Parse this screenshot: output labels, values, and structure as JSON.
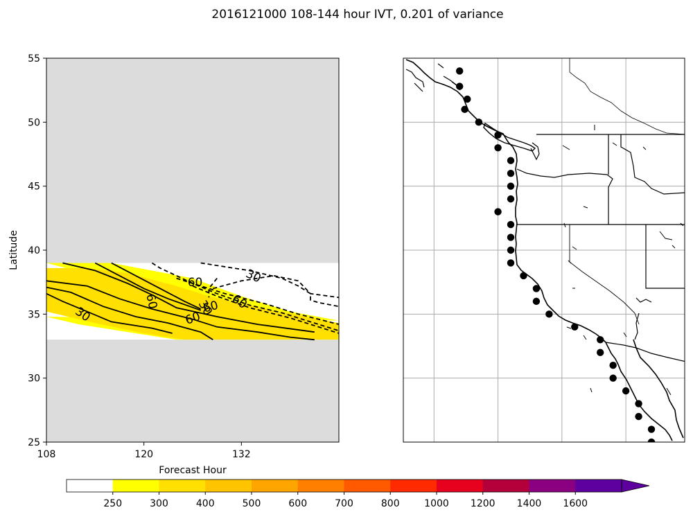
{
  "figure_title": "2016121000 108-144 hour IVT, 0.201 of variance",
  "chart_data": [
    {
      "type": "contour",
      "panel": "left",
      "xlabel": "Forecast Hour",
      "ylabel": "Latitude",
      "xlim": [
        108,
        144
      ],
      "ylim": [
        25,
        55
      ],
      "xticks": [
        "108",
        "120",
        "132"
      ],
      "yticks": [
        "25",
        "30",
        "35",
        "40",
        "45",
        "50",
        "55"
      ],
      "masked_regions": [
        {
          "lat_min": 25,
          "lat_max": 33
        },
        {
          "lat_min": 39,
          "lat_max": 55
        }
      ],
      "fill_band": {
        "value_range": "250-300",
        "color": "#ffff00",
        "upper": [
          [
            108,
            39.0
          ],
          [
            116,
            39.0
          ],
          [
            126,
            37.8
          ],
          [
            132,
            36.4
          ],
          [
            138,
            35.2
          ],
          [
            144,
            34.5
          ]
        ],
        "lower": [
          [
            108,
            34.8
          ],
          [
            112,
            34.2
          ],
          [
            117,
            33.7
          ],
          [
            124,
            33.0
          ],
          [
            144,
            33.0
          ]
        ]
      },
      "fill_core": {
        "value_range": "300-400",
        "color": "#ffe000",
        "upper": [
          [
            108,
            38.6
          ],
          [
            113,
            38.6
          ],
          [
            118,
            38.2
          ],
          [
            124,
            37.2
          ],
          [
            128,
            36.4
          ],
          [
            136,
            35.3
          ],
          [
            144,
            34.3
          ]
        ],
        "lower": [
          [
            144,
            33.0
          ],
          [
            125,
            33.0
          ],
          [
            120,
            33.5
          ],
          [
            114,
            34.3
          ],
          [
            108,
            35.2
          ]
        ]
      },
      "solid_contours": [
        [
          [
            108,
            37.6
          ],
          [
            113,
            37.2
          ],
          [
            117,
            36.2
          ],
          [
            121,
            35.4
          ],
          [
            126,
            34.6
          ],
          [
            129,
            34.0
          ],
          [
            134,
            33.6
          ],
          [
            138,
            33.2
          ],
          [
            141,
            33.0
          ]
        ],
        [
          [
            108,
            37.1
          ],
          [
            111,
            36.7
          ],
          [
            115,
            35.6
          ],
          [
            119,
            34.8
          ],
          [
            123,
            34.3
          ],
          [
            127,
            33.6
          ],
          [
            128.5,
            33.0
          ]
        ],
        [
          [
            108,
            36.6
          ],
          [
            110,
            36.0
          ],
          [
            113,
            35.2
          ],
          [
            116,
            34.4
          ],
          [
            121,
            33.9
          ],
          [
            123.5,
            33.5
          ]
        ],
        [
          [
            110,
            39.0
          ],
          [
            114,
            38.4
          ],
          [
            118,
            37.4
          ],
          [
            121,
            36.5
          ],
          [
            124,
            35.5
          ],
          [
            129,
            34.8
          ],
          [
            134,
            34.2
          ],
          [
            141,
            33.6
          ]
        ],
        [
          [
            114,
            39.0
          ],
          [
            117,
            38.0
          ],
          [
            120,
            37.0
          ],
          [
            123,
            36.2
          ],
          [
            127,
            35.3
          ]
        ],
        [
          [
            116,
            39.0
          ],
          [
            119,
            38.0
          ],
          [
            122,
            37.0
          ],
          [
            125,
            36.0
          ],
          [
            127,
            35.4
          ]
        ]
      ],
      "dashed_contours": [
        [
          [
            121,
            39.0
          ],
          [
            122,
            38.6
          ],
          [
            124,
            38.0
          ],
          [
            126,
            37.4
          ],
          [
            129,
            36.6
          ],
          [
            133,
            35.7
          ],
          [
            137,
            35.1
          ],
          [
            140,
            34.5
          ],
          [
            144,
            33.7
          ]
        ],
        [
          [
            124,
            37.8
          ],
          [
            127,
            37.2
          ],
          [
            130,
            36.6
          ],
          [
            135,
            35.8
          ],
          [
            139,
            35.0
          ],
          [
            144,
            34.2
          ]
        ],
        [
          [
            126,
            37.2
          ],
          [
            129,
            36.4
          ],
          [
            133,
            35.5
          ],
          [
            138,
            34.7
          ],
          [
            144,
            33.5
          ]
        ],
        [
          [
            127,
            39.0
          ],
          [
            133,
            38.4
          ],
          [
            137,
            37.8
          ],
          [
            139,
            37.2
          ],
          [
            140.5,
            36.6
          ],
          [
            140.5,
            36.1
          ],
          [
            141.5,
            35.9
          ],
          [
            144,
            35.6
          ]
        ],
        [
          [
            129,
            37.8
          ],
          [
            128,
            37.0
          ],
          [
            128,
            36.3
          ]
        ],
        [
          [
            128.5,
            37.0
          ],
          [
            132,
            37.6
          ],
          [
            136,
            38.0
          ],
          [
            139,
            37.6
          ],
          [
            140.5,
            36.6
          ],
          [
            144,
            36.3
          ]
        ]
      ],
      "contour_labels": [
        {
          "text": "30",
          "x": 112.5,
          "y": 35.0,
          "angle": 35
        },
        {
          "text": "60",
          "x": 121,
          "y": 36.0,
          "angle": 78
        },
        {
          "text": "60",
          "x": 126,
          "y": 34.7,
          "angle": -20
        },
        {
          "text": "30",
          "x": 127.6,
          "y": 35.5,
          "angle": 60
        },
        {
          "text": "60",
          "x": 128.2,
          "y": 35.6,
          "angle": -15
        },
        {
          "text": "60",
          "x": 126.3,
          "y": 37.5,
          "angle": 0
        },
        {
          "text": "30",
          "x": 133.5,
          "y": 38.0,
          "angle": 25
        },
        {
          "text": "60",
          "x": 131.8,
          "y": 36.0,
          "angle": 35
        }
      ]
    },
    {
      "type": "map",
      "panel": "right",
      "region": "US West Coast",
      "lon_range": [
        -132,
        -110
      ],
      "lat_range": [
        25,
        55
      ],
      "gridlines": true,
      "grid_lons": [
        -129.6,
        -124.6,
        -119.6,
        -114.6
      ],
      "grid_lats": [
        30,
        35,
        40,
        45,
        50
      ],
      "points": [
        [
          -127.6,
          54
        ],
        [
          -127.6,
          52.8
        ],
        [
          -127.0,
          51.8
        ],
        [
          -127.2,
          51.0
        ],
        [
          -126.1,
          50.0
        ],
        [
          -124.6,
          49.0
        ],
        [
          -124.6,
          48.0
        ],
        [
          -123.6,
          47.0
        ],
        [
          -123.6,
          46.0
        ],
        [
          -123.6,
          45.0
        ],
        [
          -123.6,
          44.0
        ],
        [
          -124.6,
          43.0
        ],
        [
          -123.6,
          42.0
        ],
        [
          -123.6,
          41.0
        ],
        [
          -123.6,
          40.0
        ],
        [
          -123.6,
          39.0
        ],
        [
          -122.6,
          38.0
        ],
        [
          -121.6,
          37.0
        ],
        [
          -121.6,
          36.0
        ],
        [
          -120.6,
          35.0
        ],
        [
          -118.6,
          34.0
        ],
        [
          -116.6,
          33.0
        ],
        [
          -116.6,
          32.0
        ],
        [
          -115.6,
          31.0
        ],
        [
          -115.6,
          30.0
        ],
        [
          -114.6,
          29.0
        ],
        [
          -113.6,
          28.0
        ],
        [
          -113.6,
          27.0
        ],
        [
          -112.6,
          26.0
        ],
        [
          -112.6,
          25.0
        ]
      ]
    }
  ],
  "colorbar": {
    "tick_labels": [
      "250",
      "300",
      "400",
      "500",
      "600",
      "700",
      "800",
      "1000",
      "1200",
      "1400",
      "1600"
    ],
    "colors": [
      "#ffffff",
      "#ffff00",
      "#ffe000",
      "#ffc400",
      "#ffa500",
      "#ff8000",
      "#ff5a00",
      "#ff2a00",
      "#e8001f",
      "#b4003a",
      "#8a0080",
      "#5e00a0",
      "#5e00a0"
    ]
  }
}
